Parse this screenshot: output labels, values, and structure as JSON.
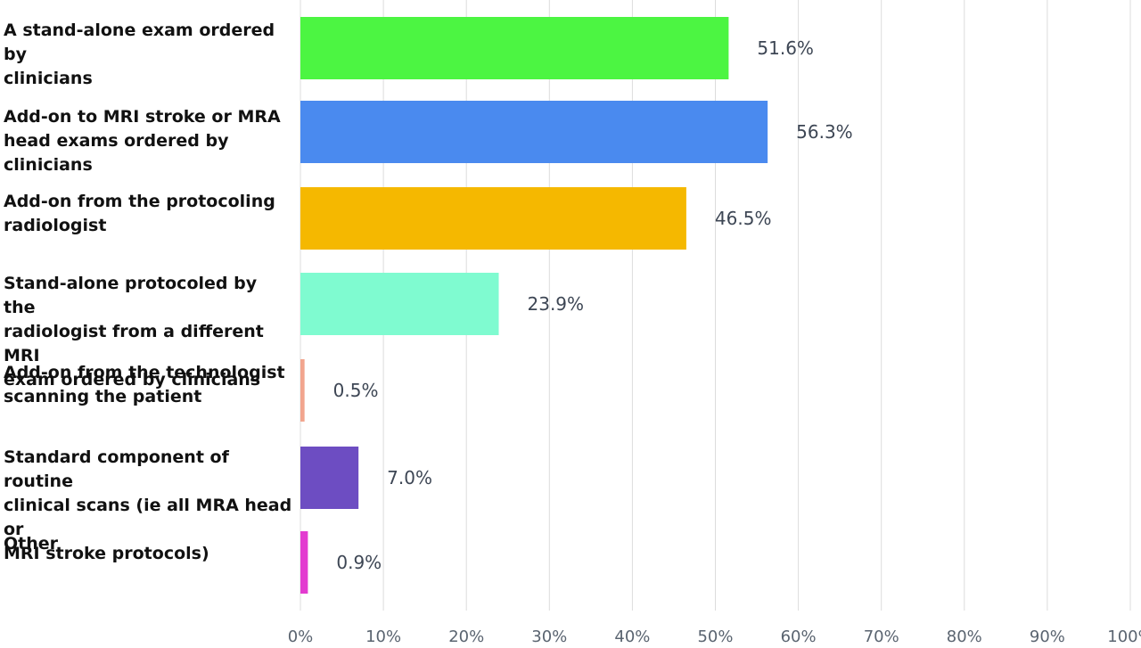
{
  "chart_data": {
    "type": "bar",
    "orientation": "horizontal",
    "categories": [
      "A stand-alone exam ordered by\nclinicians",
      "Add-on to MRI stroke or MRA\nhead exams ordered by clinicians",
      "Add-on from the protocoling\nradiologist",
      "Stand-alone protocoled by the\nradiologist from a different MRI\nexam ordered by clinicians",
      "Add-on from the technologist\nscanning the patient",
      "Standard component of routine\nclinical scans (ie all MRA head or\nMRI stroke protocols)",
      "Other"
    ],
    "values": [
      51.6,
      56.3,
      46.5,
      23.9,
      0.5,
      7.0,
      0.9
    ],
    "value_labels": [
      "51.6%",
      "56.3%",
      "46.5%",
      "23.9%",
      "0.5%",
      "7.0%",
      "0.9%"
    ],
    "colors": [
      "#4cf542",
      "#4a8aef",
      "#f5b800",
      "#7ffbd0",
      "#f2a58e",
      "#6d4dc2",
      "#e33bd0"
    ],
    "xlim": [
      0,
      100
    ],
    "xticks": [
      "0%",
      "10%",
      "20%",
      "30%",
      "40%",
      "50%",
      "60%",
      "70%",
      "80%",
      "90%",
      "100%"
    ],
    "grid": true
  }
}
